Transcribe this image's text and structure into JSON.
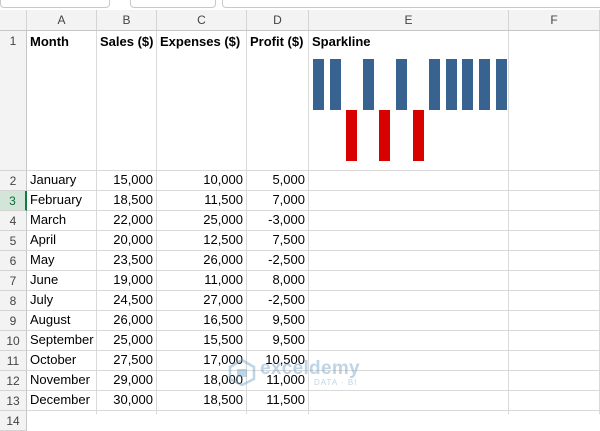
{
  "columns": [
    "A",
    "B",
    "C",
    "D",
    "E",
    "F"
  ],
  "header_row": {
    "row_number": "1",
    "cells": [
      "Month",
      "Sales ($)",
      "Expenses ($)",
      "Profit ($)",
      "Sparkline"
    ]
  },
  "rows": [
    {
      "n": "2",
      "month": "January",
      "sales": "15,000",
      "expenses": "10,000",
      "profit": "5,000"
    },
    {
      "n": "3",
      "month": "February",
      "sales": "18,500",
      "expenses": "11,500",
      "profit": "7,000"
    },
    {
      "n": "4",
      "month": "March",
      "sales": "22,000",
      "expenses": "25,000",
      "profit": "-3,000"
    },
    {
      "n": "5",
      "month": "April",
      "sales": "20,000",
      "expenses": "12,500",
      "profit": "7,500"
    },
    {
      "n": "6",
      "month": "May",
      "sales": "23,500",
      "expenses": "26,000",
      "profit": "-2,500"
    },
    {
      "n": "7",
      "month": "June",
      "sales": "19,000",
      "expenses": "11,000",
      "profit": "8,000"
    },
    {
      "n": "8",
      "month": "July",
      "sales": "24,500",
      "expenses": "27,000",
      "profit": "-2,500"
    },
    {
      "n": "9",
      "month": "August",
      "sales": "26,000",
      "expenses": "16,500",
      "profit": "9,500"
    },
    {
      "n": "10",
      "month": "September",
      "sales": "25,000",
      "expenses": "15,500",
      "profit": "9,500"
    },
    {
      "n": "11",
      "month": "October",
      "sales": "27,500",
      "expenses": "17,000",
      "profit": "10,500"
    },
    {
      "n": "12",
      "month": "November",
      "sales": "29,000",
      "expenses": "18,000",
      "profit": "11,000"
    },
    {
      "n": "13",
      "month": "December",
      "sales": "30,000",
      "expenses": "18,500",
      "profit": "11,500"
    }
  ],
  "extra_row_number": "14",
  "selected_row": "3",
  "sparkline": {
    "type": "win-loss",
    "values": [
      1,
      1,
      -1,
      1,
      -1,
      1,
      -1,
      1,
      1,
      1,
      1,
      1
    ],
    "positive_color": "#38628f",
    "negative_color": "#d90000"
  },
  "watermark": {
    "brand": "exceldemy",
    "tagline": "DATA · BI"
  }
}
